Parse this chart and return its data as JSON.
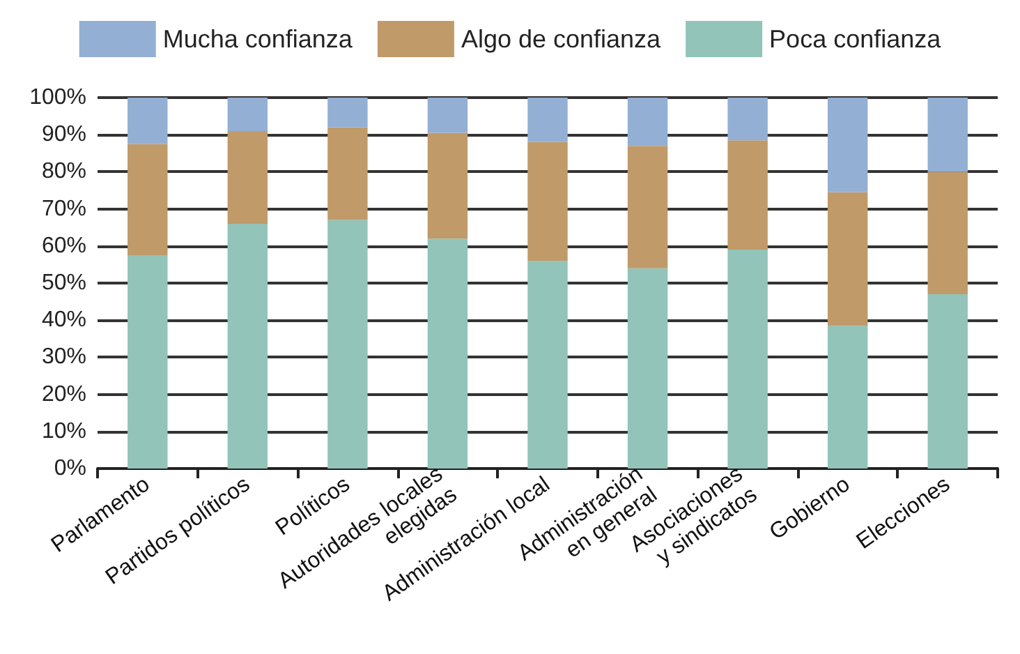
{
  "chart_data": {
    "type": "bar",
    "stacked": true,
    "categories": [
      "Parlamento",
      "Partidos políticos",
      "Políticos",
      "Autoridades locales\nelegidas",
      "Administración local",
      "Administración\nen general",
      "Asociaciones\ny sindicatos",
      "Gobierno",
      "Elecciones"
    ],
    "series": [
      {
        "name": "Poca confianza",
        "color": "#92c4b9",
        "values": [
          57.5,
          66,
          67,
          62,
          56,
          54,
          59,
          38.5,
          47
        ]
      },
      {
        "name": "Algo de confianza",
        "color": "#c09a68",
        "values": [
          30,
          25,
          25,
          28.5,
          32,
          33,
          29.5,
          36,
          33
        ]
      },
      {
        "name": "Mucha confianza",
        "color": "#93afd4",
        "values": [
          12.5,
          9,
          8,
          9.5,
          12,
          13,
          11.5,
          25.5,
          20
        ]
      }
    ],
    "ylim": [
      0,
      100
    ],
    "yticks": [
      {
        "value": 0,
        "label": "0%"
      },
      {
        "value": 10,
        "label": "10%"
      },
      {
        "value": 20,
        "label": "20%"
      },
      {
        "value": 30,
        "label": "30%"
      },
      {
        "value": 40,
        "label": "40%"
      },
      {
        "value": 50,
        "label": "50%"
      },
      {
        "value": 60,
        "label": "60%"
      },
      {
        "value": 70,
        "label": "70%"
      },
      {
        "value": 80,
        "label": "80%"
      },
      {
        "value": 90,
        "label": "90%"
      },
      {
        "value": 100,
        "label": "100%"
      }
    ],
    "grid": "y",
    "legend": "top"
  }
}
